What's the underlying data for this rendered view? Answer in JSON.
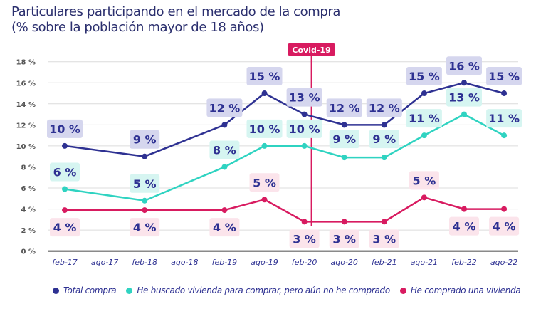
{
  "chart_data": {
    "type": "line",
    "title": "Particulares participando en el mercado de la compra",
    "subtitle": "(% sobre la población mayor de 18 años)",
    "categories": [
      "feb-17",
      "ago-17",
      "feb-18",
      "ago-18",
      "feb-19",
      "ago-19",
      "feb-20",
      "ago-20",
      "feb-21",
      "ago-21",
      "feb-22",
      "ago-22"
    ],
    "ylim": [
      0,
      18
    ],
    "yticks": [
      "0 %",
      "2 %",
      "4 %",
      "6 %",
      "8 %",
      "10 %",
      "12 %",
      "14 %",
      "16 %",
      "18 %"
    ],
    "grid": true,
    "legend_position": "bottom",
    "annotation": {
      "label": "Covid-19",
      "at": "feb-20",
      "color": "#d81b60"
    },
    "series": [
      {
        "name": "Total compra",
        "color": "#2e3192",
        "label_bg": "#d5d6ee",
        "x": [
          "feb-17",
          "feb-18",
          "feb-19",
          "ago-19",
          "feb-20",
          "ago-20",
          "feb-21",
          "ago-21",
          "feb-22",
          "ago-22"
        ],
        "values": [
          10,
          9,
          12,
          15,
          13,
          12,
          12,
          15,
          16,
          15
        ],
        "labels": [
          "10 %",
          "9 %",
          "12 %",
          "15 %",
          "13 %",
          "12 %",
          "12 %",
          "15 %",
          "16 %",
          "15 %"
        ]
      },
      {
        "name": "He buscado vivienda para comprar, pero aún no he comprado",
        "color": "#2fd3c1",
        "label_bg": "#d6f5f1",
        "x": [
          "feb-17",
          "feb-18",
          "feb-19",
          "ago-19",
          "feb-20",
          "ago-20",
          "feb-21",
          "ago-21",
          "feb-22",
          "ago-22"
        ],
        "values": [
          5.9,
          4.8,
          8,
          10,
          10,
          8.9,
          8.9,
          11,
          13,
          11
        ],
        "labels": [
          "6 %",
          "5 %",
          "8 %",
          "10 %",
          "10 %",
          "9 %",
          "9 %",
          "11 %",
          "13 %",
          "11 %"
        ]
      },
      {
        "name": "He comprado una vivienda",
        "color": "#d81b60",
        "label_bg": "#fbe4eb",
        "x": [
          "feb-17",
          "feb-18",
          "feb-19",
          "ago-19",
          "feb-20",
          "ago-20",
          "feb-21",
          "ago-21",
          "feb-22",
          "ago-22"
        ],
        "values": [
          3.9,
          3.9,
          3.9,
          4.9,
          2.8,
          2.8,
          2.8,
          5.1,
          4,
          4
        ],
        "labels": [
          "4 %",
          "4 %",
          "4 %",
          "5 %",
          "3 %",
          "3 %",
          "3 %",
          "5 %",
          "4 %",
          "4 %"
        ]
      }
    ]
  }
}
